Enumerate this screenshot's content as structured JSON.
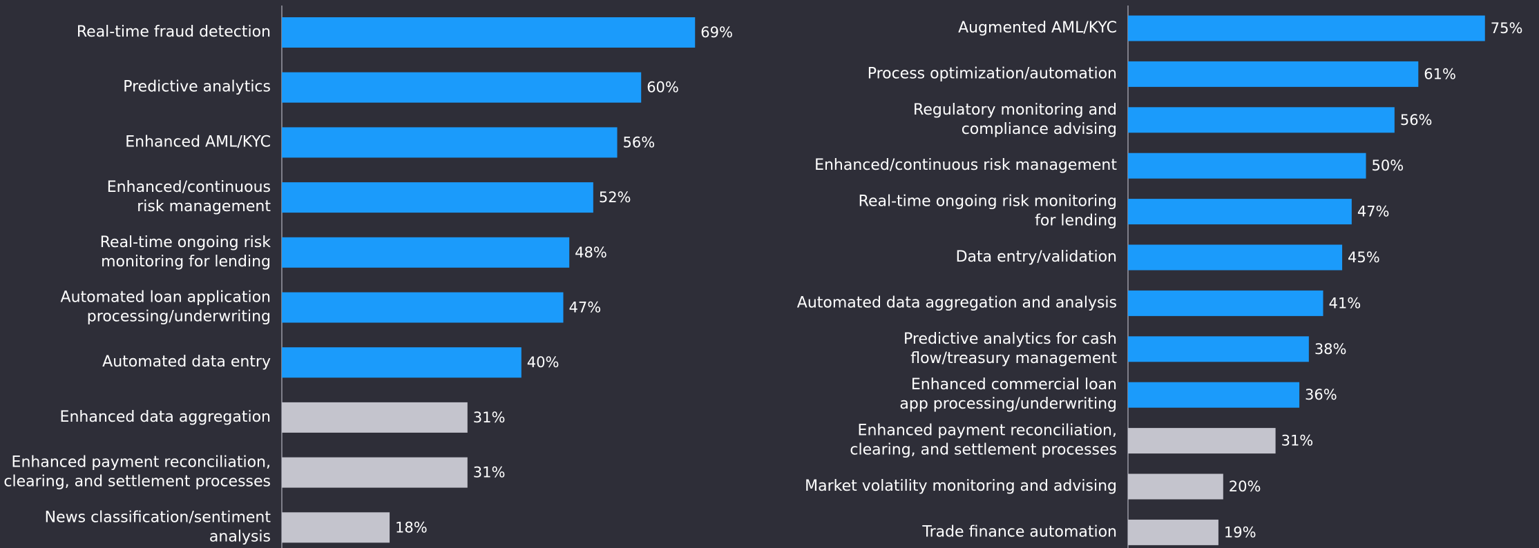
{
  "chart_data": [
    {
      "type": "barh",
      "categories": [
        [
          "Real-time fraud detection"
        ],
        [
          "Predictive analytics"
        ],
        [
          "Enhanced AML/KYC"
        ],
        [
          "Enhanced/continuous",
          "risk management"
        ],
        [
          "Real-time ongoing risk",
          "monitoring for lending"
        ],
        [
          "Automated loan application",
          "processing/underwriting"
        ],
        [
          "Automated data entry"
        ],
        [
          "Enhanced data aggregation"
        ],
        [
          "Enhanced payment reconciliation,",
          "clearing, and settlement processes"
        ],
        [
          "News classification/sentiment",
          "analysis"
        ]
      ],
      "values": [
        69,
        60,
        56,
        52,
        48,
        47,
        40,
        31,
        31,
        18
      ],
      "value_labels": [
        "69%",
        "60%",
        "56%",
        "52%",
        "48%",
        "47%",
        "40%",
        "31%",
        "31%",
        "18%"
      ],
      "colors": [
        "#1b9bfb",
        "#1b9bfb",
        "#1b9bfb",
        "#1b9bfb",
        "#1b9bfb",
        "#1b9bfb",
        "#1b9bfb",
        "#c4c4cd",
        "#c4c4cd",
        "#c4c4cd"
      ],
      "xlim": [
        0,
        100
      ]
    },
    {
      "type": "barh",
      "categories": [
        [
          "Augmented AML/KYC"
        ],
        [
          "Process optimization/automation"
        ],
        [
          "Regulatory monitoring and",
          "compliance advising"
        ],
        [
          "Enhanced/continuous risk management"
        ],
        [
          "Real-time ongoing risk monitoring",
          "for lending"
        ],
        [
          "Data entry/validation"
        ],
        [
          "Automated data aggregation and analysis"
        ],
        [
          "Predictive analytics for cash",
          "flow/treasury management"
        ],
        [
          "Enhanced commercial loan",
          "app processing/underwriting"
        ],
        [
          "Enhanced payment reconciliation,",
          "clearing, and settlement processes"
        ],
        [
          "Market volatility monitoring and advising"
        ],
        [
          "Trade finance automation"
        ]
      ],
      "values": [
        75,
        61,
        56,
        50,
        47,
        45,
        41,
        38,
        36,
        31,
        20,
        19
      ],
      "value_labels": [
        "75%",
        "61%",
        "56%",
        "50%",
        "47%",
        "45%",
        "41%",
        "38%",
        "36%",
        "31%",
        "20%",
        "19%"
      ],
      "colors": [
        "#1b9bfb",
        "#1b9bfb",
        "#1b9bfb",
        "#1b9bfb",
        "#1b9bfb",
        "#1b9bfb",
        "#1b9bfb",
        "#1b9bfb",
        "#1b9bfb",
        "#c4c4cd",
        "#c4c4cd",
        "#c4c4cd"
      ],
      "xlim": [
        0,
        100
      ]
    }
  ]
}
